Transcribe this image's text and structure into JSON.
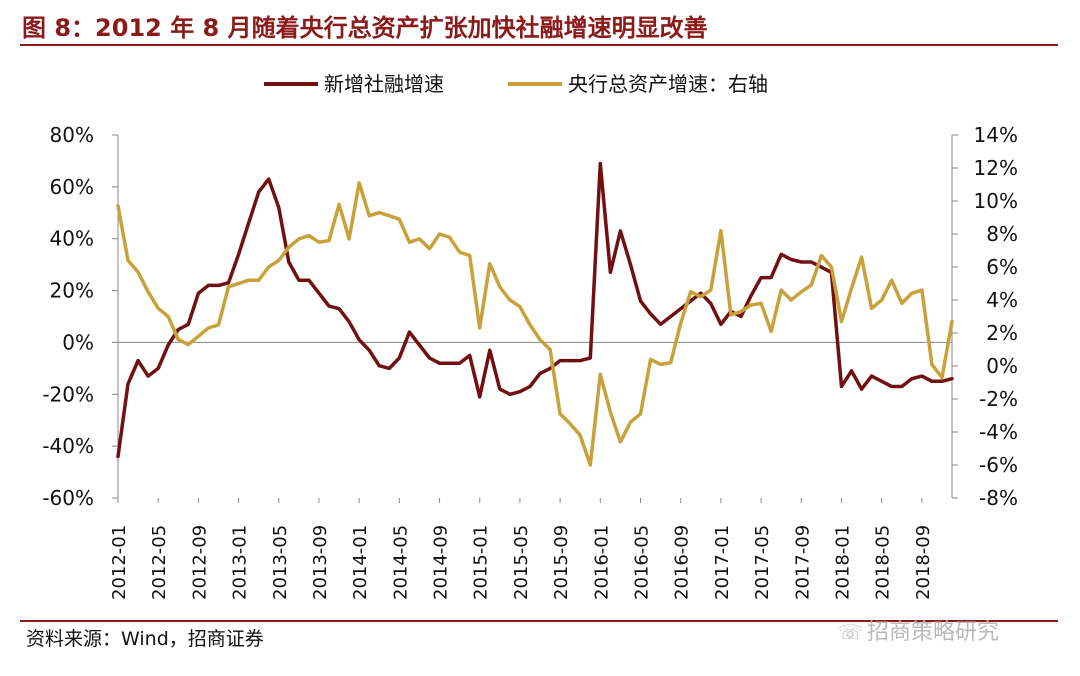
{
  "header": {
    "title": "图 8：2012 年 8 月随着央行总资产扩张加快社融增速明显改善"
  },
  "footer": {
    "source": "资料来源：Wind，招商证券",
    "watermark": "招商策略研究",
    "watermark_icon": "wechat-icon"
  },
  "colors": {
    "accent": "#8B1A1A",
    "series1": "#701010",
    "series2": "#C9A13B"
  },
  "chart_data": {
    "type": "line",
    "title": "2012 年 8 月随着央行总资产扩张加快社融增速明显改善",
    "x": [
      "2012-01",
      "2012-02",
      "2012-03",
      "2012-04",
      "2012-05",
      "2012-06",
      "2012-07",
      "2012-08",
      "2012-09",
      "2012-10",
      "2012-11",
      "2012-12",
      "2013-01",
      "2013-02",
      "2013-03",
      "2013-04",
      "2013-05",
      "2013-06",
      "2013-07",
      "2013-08",
      "2013-09",
      "2013-10",
      "2013-11",
      "2013-12",
      "2014-01",
      "2014-02",
      "2014-03",
      "2014-04",
      "2014-05",
      "2014-06",
      "2014-07",
      "2014-08",
      "2014-09",
      "2014-10",
      "2014-11",
      "2014-12",
      "2015-01",
      "2015-02",
      "2015-03",
      "2015-04",
      "2015-05",
      "2015-06",
      "2015-07",
      "2015-08",
      "2015-09",
      "2015-10",
      "2015-11",
      "2015-12",
      "2016-01",
      "2016-02",
      "2016-03",
      "2016-04",
      "2016-05",
      "2016-06",
      "2016-07",
      "2016-08",
      "2016-09",
      "2016-10",
      "2016-11",
      "2016-12",
      "2017-01",
      "2017-02",
      "2017-03",
      "2017-04",
      "2017-05",
      "2017-06",
      "2017-07",
      "2017-08",
      "2017-09",
      "2017-10",
      "2017-11",
      "2017-12",
      "2018-01",
      "2018-02",
      "2018-03",
      "2018-04",
      "2018-05",
      "2018-06",
      "2018-07",
      "2018-08",
      "2018-09",
      "2018-10",
      "2018-11",
      "2018-12"
    ],
    "tick_labels": [
      "2012-01",
      "2012-05",
      "2012-09",
      "2013-01",
      "2013-05",
      "2013-09",
      "2014-01",
      "2014-05",
      "2014-09",
      "2015-01",
      "2015-05",
      "2015-09",
      "2016-01",
      "2016-05",
      "2016-09",
      "2017-01",
      "2017-05",
      "2017-09",
      "2018-01",
      "2018-05",
      "2018-09"
    ],
    "left_axis": {
      "ylim": [
        -60,
        80
      ],
      "ticks": [
        "80%",
        "60%",
        "40%",
        "20%",
        "0%",
        "-20%",
        "-40%",
        "-60%"
      ]
    },
    "right_axis": {
      "ylim": [
        -8,
        14
      ],
      "ticks": [
        "14%",
        "12%",
        "10%",
        "8%",
        "6%",
        "4%",
        "2%",
        "0%",
        "-2%",
        "-4%",
        "-6%",
        "-8%"
      ]
    },
    "series": [
      {
        "name": "新增社融增速",
        "axis": "left",
        "color": "#701010",
        "values": [
          -44,
          -16,
          -7,
          -13,
          -10,
          -1,
          5,
          7,
          19,
          22,
          22,
          23,
          34,
          46,
          58,
          63,
          52,
          31,
          24,
          24,
          19,
          14,
          13,
          8,
          1,
          -3,
          -9,
          -10,
          -6,
          4,
          -1,
          -6,
          -8,
          -8,
          -8,
          -5,
          -21,
          -3,
          -18,
          -20,
          -19,
          -17,
          -12,
          -10,
          -7,
          -7,
          -7,
          -6,
          69,
          27,
          43,
          30,
          16,
          11,
          7,
          10,
          13,
          16,
          19,
          15,
          7,
          12,
          10,
          18,
          25,
          25,
          34,
          32,
          31,
          31,
          29,
          27,
          -17,
          -11,
          -18,
          -13,
          -15,
          -17,
          -17,
          -14,
          -13,
          -15,
          -15,
          -14
        ]
      },
      {
        "name": "央行总资产增速：右轴",
        "axis": "right",
        "color": "#C9A13B",
        "values": [
          9.7,
          6.4,
          5.7,
          4.5,
          3.5,
          3.0,
          1.6,
          1.3,
          1.8,
          2.3,
          2.5,
          4.8,
          5.0,
          5.2,
          5.2,
          6.0,
          6.4,
          7.2,
          7.7,
          7.9,
          7.5,
          7.6,
          9.8,
          7.7,
          11.1,
          9.1,
          9.3,
          9.1,
          8.9,
          7.5,
          7.7,
          7.1,
          8.0,
          7.8,
          6.9,
          6.7,
          2.3,
          6.2,
          4.8,
          4.0,
          3.6,
          2.5,
          1.6,
          1.0,
          -2.9,
          -3.5,
          -4.2,
          -6.0,
          -0.5,
          -2.8,
          -4.6,
          -3.4,
          -2.9,
          0.4,
          0.1,
          0.2,
          2.6,
          4.5,
          4.2,
          4.6,
          8.2,
          3.1,
          3.3,
          3.7,
          3.8,
          2.1,
          4.6,
          4.0,
          4.5,
          4.9,
          6.7,
          6.0,
          2.7,
          4.7,
          6.6,
          3.5,
          4.0,
          5.2,
          3.8,
          4.4,
          4.6,
          0.1,
          -0.7,
          2.7
        ]
      }
    ],
    "legend": {
      "position": "top-center",
      "entries": [
        "新增社融增速",
        "央行总资产增速：右轴"
      ]
    },
    "grid": false
  }
}
